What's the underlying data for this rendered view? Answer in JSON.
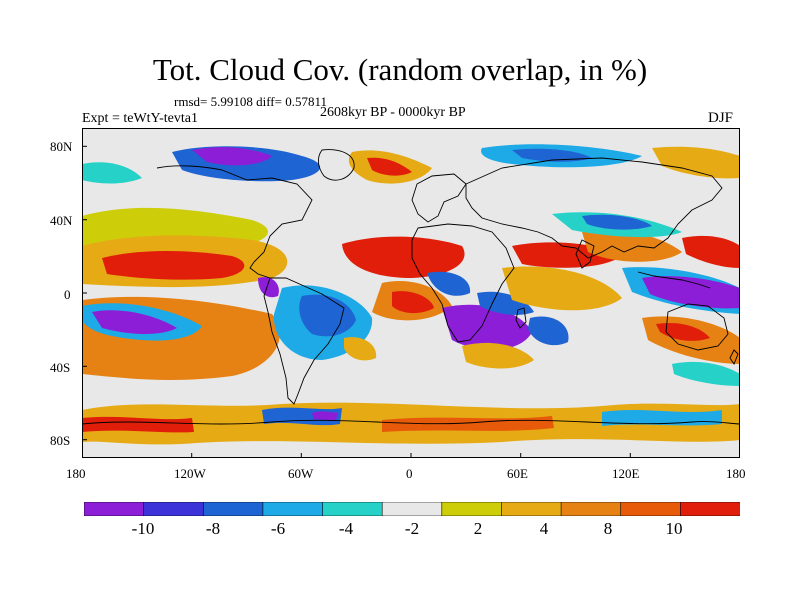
{
  "header": {
    "title": "Tot. Cloud Cov. (random overlap, in %)",
    "stats": "rmsd= 5.99108 diff= 0.57811",
    "experiment": "Expt = teWtY-tevta1",
    "period": "2608kyr BP - 0000kyr BP",
    "season": "DJF"
  },
  "map": {
    "projection": "cylindrical-equidistant",
    "lon_range": [
      -180,
      180
    ],
    "lat_range": [
      -90,
      90
    ],
    "x_tick_labels": [
      "180",
      "120W",
      "60W",
      "0",
      "60E",
      "120E",
      "180"
    ],
    "y_tick_labels": [
      "80N",
      "40N",
      "0",
      "40S",
      "80S"
    ],
    "colors": {
      "background": "#e8e8e8",
      "coast": "#000000"
    }
  },
  "colorbar": {
    "labels": [
      "-10",
      "-8",
      "-6",
      "-4",
      "-2",
      "2",
      "4",
      "8",
      "10"
    ],
    "colors": [
      "#8c1ed7",
      "#3c32d7",
      "#1e64d2",
      "#1eaae6",
      "#26d2c8",
      "#e8e8e8",
      "#cdcd0a",
      "#e6aa14",
      "#e68214",
      "#e65a0a",
      "#e01e0a"
    ]
  }
}
